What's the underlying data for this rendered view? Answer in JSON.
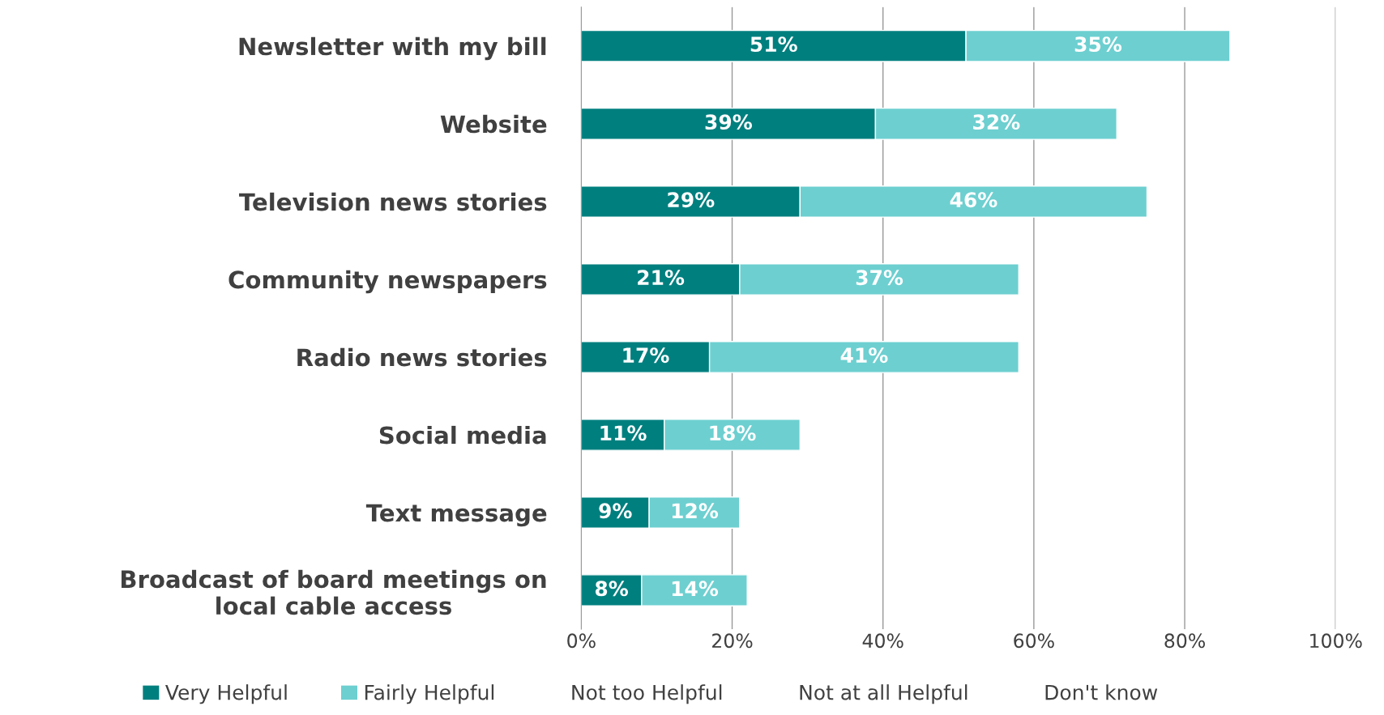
{
  "chart_data": {
    "type": "bar",
    "orientation": "horizontal",
    "stacked": true,
    "categories": [
      "Newsletter with my bill",
      "Website",
      "Television news stories",
      "Community newspapers",
      "Radio news stories",
      "Social media",
      "Text message",
      "Broadcast of board meetings on\nlocal cable access"
    ],
    "series": [
      {
        "name": "Very Helpful",
        "color": "#007f7f",
        "values": [
          51,
          39,
          29,
          21,
          17,
          11,
          9,
          8
        ],
        "value_labels": [
          "51%",
          "39%",
          "29%",
          "21%",
          "17%",
          "11%",
          "9%",
          "8%"
        ]
      },
      {
        "name": "Fairly Helpful",
        "color": "#6dcfd0",
        "values": [
          35,
          32,
          46,
          37,
          41,
          18,
          12,
          14
        ],
        "value_labels": [
          "35%",
          "32%",
          "46%",
          "37%",
          "41%",
          "18%",
          "12%",
          "14%"
        ]
      },
      {
        "name": "Not too Helpful",
        "values": [
          null,
          null,
          null,
          null,
          null,
          null,
          null,
          null
        ]
      },
      {
        "name": "Not at all Helpful",
        "values": [
          null,
          null,
          null,
          null,
          null,
          null,
          null,
          null
        ]
      },
      {
        "name": "Don't know",
        "values": [
          null,
          null,
          null,
          null,
          null,
          null,
          null,
          null
        ]
      }
    ],
    "xlim": [
      0,
      100
    ],
    "xticks": [
      {
        "value": 0,
        "label": "0%"
      },
      {
        "value": 20,
        "label": "20%"
      },
      {
        "value": 40,
        "label": "40%"
      },
      {
        "value": 60,
        "label": "60%"
      },
      {
        "value": 80,
        "label": "80%"
      },
      {
        "value": 100,
        "label": "100%"
      }
    ],
    "grid": "x",
    "legend": "bottom"
  }
}
